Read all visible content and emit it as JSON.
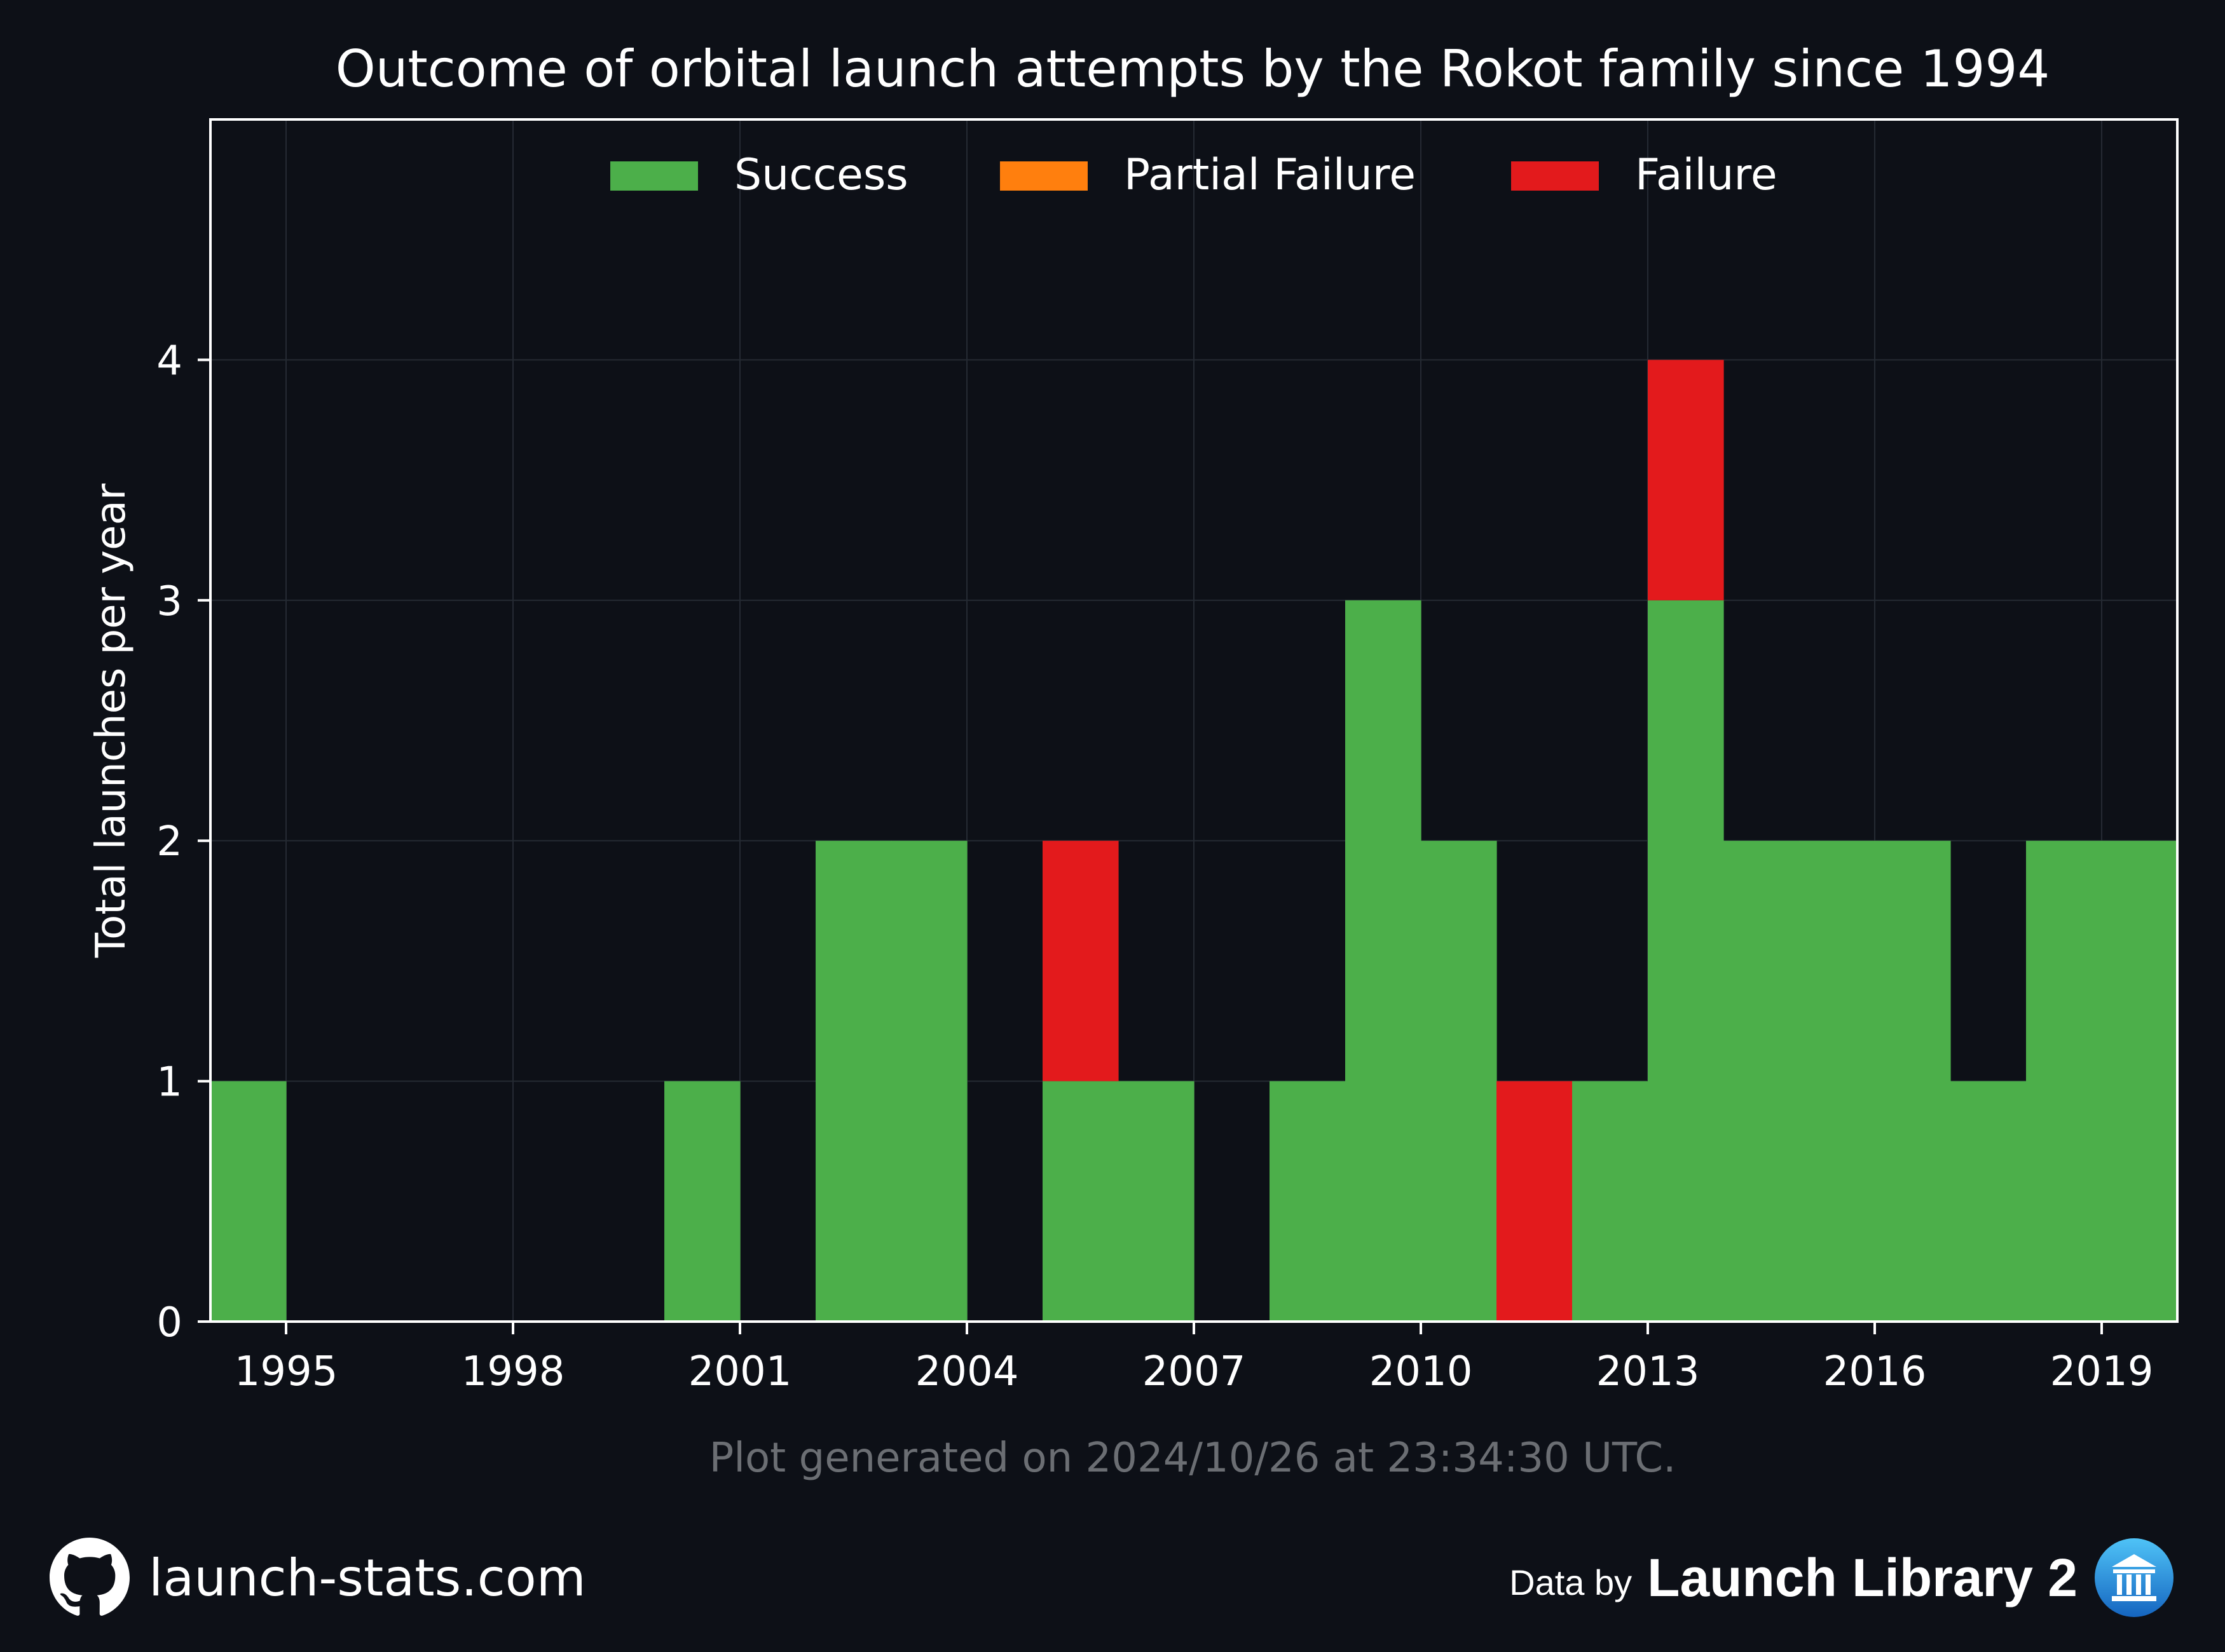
{
  "chart_data": {
    "type": "bar",
    "stacked": true,
    "title": "Outcome of orbital launch attempts by the Rokot family since 1994",
    "ylabel": "Total launches per year",
    "xlabel": "",
    "x": [
      1994,
      1995,
      1996,
      1997,
      1998,
      1999,
      2000,
      2001,
      2002,
      2003,
      2004,
      2005,
      2006,
      2007,
      2008,
      2009,
      2010,
      2011,
      2012,
      2013,
      2014,
      2015,
      2016,
      2017,
      2018,
      2019
    ],
    "xlim": [
      1994,
      2020
    ],
    "ylim": [
      0,
      5
    ],
    "xticks": [
      "1995",
      "1998",
      "2001",
      "2004",
      "2007",
      "2010",
      "2013",
      "2016",
      "2019"
    ],
    "yticks": [
      "0",
      "1",
      "2",
      "3",
      "4"
    ],
    "grid": true,
    "legend_position": "top-center",
    "series": [
      {
        "name": "Success",
        "color": "#4caf4a",
        "values": [
          1,
          0,
          0,
          0,
          0,
          0,
          1,
          0,
          2,
          2,
          0,
          1,
          1,
          0,
          1,
          3,
          2,
          0,
          1,
          3,
          2,
          2,
          2,
          1,
          2,
          2
        ]
      },
      {
        "name": "Partial Failure",
        "color": "#ff7f0e",
        "values": [
          0,
          0,
          0,
          0,
          0,
          0,
          0,
          0,
          0,
          0,
          0,
          0,
          0,
          0,
          0,
          0,
          0,
          0,
          0,
          0,
          0,
          0,
          0,
          0,
          0,
          0
        ]
      },
      {
        "name": "Failure",
        "color": "#e31a1c",
        "values": [
          0,
          0,
          0,
          0,
          0,
          0,
          0,
          0,
          0,
          0,
          0,
          1,
          0,
          0,
          0,
          0,
          0,
          1,
          0,
          1,
          0,
          0,
          0,
          0,
          0,
          0
        ]
      }
    ],
    "annotation": "Plot generated on 2024/10/26 at 23:34:30 UTC."
  },
  "footer": {
    "site_label": "launch-stats.com",
    "data_by_label": "Data by",
    "library_label": "Launch Library 2",
    "site_icon": "github-icon",
    "library_icon": "launch-library-icon"
  },
  "colors": {
    "background": "#0d1017",
    "grid": "#252a33",
    "axis": "#ffffff",
    "annotation": "#6b6e73"
  }
}
